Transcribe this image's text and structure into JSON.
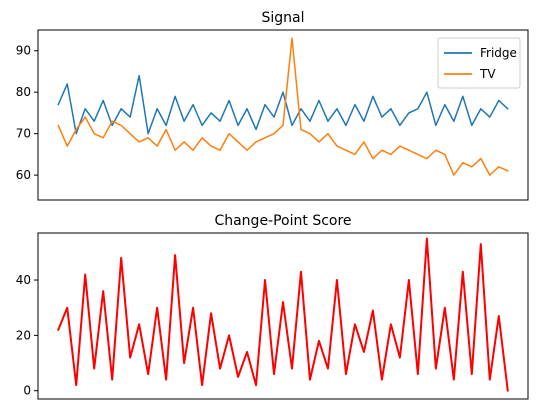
{
  "chart_data": [
    {
      "type": "line",
      "title": "Signal",
      "xlabel": "",
      "ylabel": "",
      "x_ticks_visible": false,
      "ylim": [
        54,
        95
      ],
      "y_ticks": [
        60,
        70,
        80,
        90
      ],
      "legend_position": "top-right",
      "grid": false,
      "series": [
        {
          "name": "Fridge",
          "color": "#1f77b4",
          "x": [
            0,
            3,
            6,
            9,
            12,
            15,
            18,
            21,
            24,
            27,
            30,
            33,
            36,
            39,
            42,
            45,
            48,
            51,
            54,
            57,
            60,
            63,
            66,
            69,
            72,
            75,
            78,
            81,
            84,
            87,
            90,
            93,
            96,
            99,
            102,
            105,
            108,
            111,
            114,
            117,
            120,
            123,
            126,
            129,
            132,
            135,
            138,
            141,
            144,
            147,
            150
          ],
          "values": [
            77,
            82,
            70,
            76,
            73,
            78,
            72,
            76,
            74,
            84,
            70,
            76,
            72,
            79,
            73,
            77,
            72,
            75,
            73,
            78,
            72,
            76,
            71,
            77,
            74,
            80,
            72,
            76,
            73,
            78,
            73,
            76,
            72,
            77,
            73,
            79,
            74,
            76,
            72,
            75,
            76,
            80,
            72,
            77,
            73,
            79,
            72,
            76,
            74,
            78,
            76
          ]
        },
        {
          "name": "TV",
          "color": "#ff7f0e",
          "x": [
            0,
            3,
            6,
            9,
            12,
            15,
            18,
            21,
            24,
            27,
            30,
            33,
            36,
            39,
            42,
            45,
            48,
            51,
            54,
            57,
            60,
            63,
            66,
            69,
            72,
            75,
            78,
            81,
            84,
            87,
            90,
            93,
            96,
            99,
            102,
            105,
            108,
            111,
            114,
            117,
            120,
            123,
            126,
            129,
            132,
            135,
            138,
            141,
            144,
            147,
            150
          ],
          "values": [
            72,
            67,
            71,
            74,
            70,
            69,
            73,
            72,
            70,
            68,
            69,
            67,
            71,
            66,
            68,
            66,
            69,
            67,
            66,
            70,
            68,
            66,
            68,
            69,
            70,
            72,
            93,
            71,
            70,
            68,
            70,
            67,
            66,
            65,
            68,
            64,
            66,
            65,
            67,
            66,
            65,
            64,
            66,
            65,
            60,
            63,
            62,
            64,
            60,
            62,
            61
          ]
        }
      ]
    },
    {
      "type": "line",
      "title": "Change-Point Score",
      "xlabel": "",
      "ylabel": "",
      "x_ticks_visible": false,
      "ylim": [
        -3,
        57
      ],
      "y_ticks": [
        0,
        20,
        40
      ],
      "grid": false,
      "series": [
        {
          "color": "#ff0000",
          "x": [
            0,
            3,
            6,
            9,
            12,
            15,
            18,
            21,
            24,
            27,
            30,
            33,
            36,
            39,
            42,
            45,
            48,
            51,
            54,
            57,
            60,
            63,
            66,
            69,
            72,
            75,
            78,
            81,
            84,
            87,
            90,
            93,
            96,
            99,
            102,
            105,
            108,
            111,
            114,
            117,
            120,
            123,
            126,
            129,
            132,
            135,
            138,
            141,
            144,
            147,
            150
          ],
          "values": [
            22,
            30,
            2,
            42,
            8,
            36,
            4,
            48,
            12,
            24,
            6,
            30,
            4,
            49,
            10,
            30,
            2,
            28,
            8,
            20,
            5,
            14,
            2,
            40,
            6,
            32,
            8,
            43,
            4,
            18,
            8,
            40,
            6,
            24,
            14,
            29,
            4,
            24,
            12,
            40,
            6,
            55,
            8,
            30,
            4,
            43,
            6,
            53,
            4,
            27,
            0
          ]
        }
      ]
    }
  ]
}
